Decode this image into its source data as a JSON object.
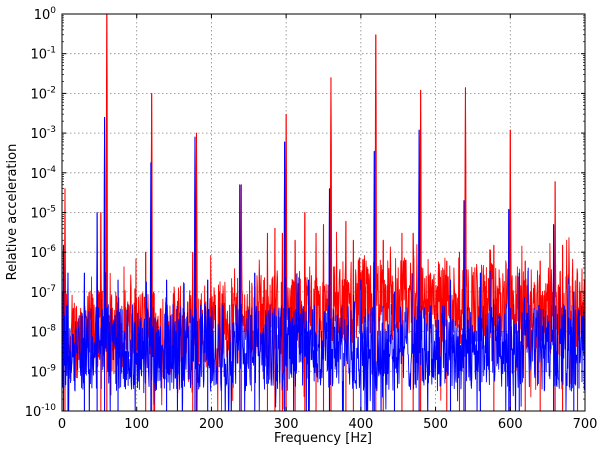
{
  "chart_data": {
    "type": "line",
    "title": "",
    "xlabel": "Frequency  [Hz]",
    "ylabel": "Relative acceleration",
    "x_scale": "linear",
    "y_scale": "log",
    "xlim": [
      0,
      700
    ],
    "ylim": [
      1e-10,
      1
    ],
    "grid": true,
    "x_ticks": [
      {
        "value": 0,
        "label": "0"
      },
      {
        "value": 100,
        "label": "100"
      },
      {
        "value": 200,
        "label": "200"
      },
      {
        "value": 300,
        "label": "300"
      },
      {
        "value": 400,
        "label": "400"
      },
      {
        "value": 500,
        "label": "500"
      },
      {
        "value": 600,
        "label": "600"
      },
      {
        "value": 700,
        "label": "700"
      }
    ],
    "y_ticks": [
      {
        "value": 1e-10,
        "mantissa": "10",
        "exponent": "-10"
      },
      {
        "value": 1e-09,
        "mantissa": "10",
        "exponent": "-9"
      },
      {
        "value": 1e-08,
        "mantissa": "10",
        "exponent": "-8"
      },
      {
        "value": 1e-07,
        "mantissa": "10",
        "exponent": "-7"
      },
      {
        "value": 1e-06,
        "mantissa": "10",
        "exponent": "-6"
      },
      {
        "value": 1e-05,
        "mantissa": "10",
        "exponent": "-5"
      },
      {
        "value": 0.0001,
        "mantissa": "10",
        "exponent": "-4"
      },
      {
        "value": 0.001,
        "mantissa": "10",
        "exponent": "-3"
      },
      {
        "value": 0.01,
        "mantissa": "10",
        "exponent": "-2"
      },
      {
        "value": 0.1,
        "mantissa": "10",
        "exponent": "-1"
      },
      {
        "value": 1,
        "mantissa": "10",
        "exponent": "0"
      }
    ],
    "series": [
      {
        "color": "#ff0000",
        "peaks": [
          [
            4,
            4e-05
          ],
          [
            60,
            1.0
          ],
          [
            120,
            0.01
          ],
          [
            180,
            0.001
          ],
          [
            240,
            5e-05
          ],
          [
            300,
            0.003
          ],
          [
            360,
            0.025
          ],
          [
            420,
            0.3
          ],
          [
            480,
            0.012
          ],
          [
            540,
            0.014
          ],
          [
            600,
            0.0012
          ],
          [
            660,
            6e-05
          ],
          [
            52,
            1e-05
          ],
          [
            112,
            1e-06
          ],
          [
            175,
            1e-06
          ],
          [
            275,
            3e-06
          ],
          [
            285,
            4e-06
          ],
          [
            295,
            3e-06
          ],
          [
            312,
            2e-06
          ],
          [
            325,
            1e-05
          ],
          [
            340,
            3e-06
          ],
          [
            350,
            5e-06
          ],
          [
            380,
            6e-06
          ],
          [
            390,
            2e-06
          ],
          [
            430,
            2e-06
          ],
          [
            455,
            3e-06
          ],
          [
            470,
            3e-06
          ],
          [
            515,
            6e-07
          ],
          [
            532,
            1e-06
          ],
          [
            578,
            1.5e-06
          ],
          [
            620,
            6e-07
          ],
          [
            640,
            6e-07
          ],
          [
            670,
            1.5e-06
          ],
          [
            690,
            3e-07
          ]
        ],
        "noise_floor": [
          [
            0,
            8e-09
          ],
          [
            100,
            1e-08
          ],
          [
            200,
            1.5e-08
          ],
          [
            300,
            2.5e-08
          ],
          [
            400,
            6e-08
          ],
          [
            500,
            6e-08
          ],
          [
            600,
            4e-08
          ],
          [
            700,
            3e-08
          ]
        ]
      },
      {
        "color": "#0000ff",
        "peaks": [
          [
            2,
            1.5e-06
          ],
          [
            8,
            3e-07
          ],
          [
            57,
            0.0025
          ],
          [
            47,
            1e-05
          ],
          [
            119,
            0.00018
          ],
          [
            178,
            0.0008
          ],
          [
            238,
            5e-05
          ],
          [
            298,
            0.0006
          ],
          [
            358,
            4e-05
          ],
          [
            418,
            0.00035
          ],
          [
            478,
            0.0012
          ],
          [
            538,
            2e-05
          ],
          [
            598,
            1.2e-05
          ],
          [
            658,
            5e-06
          ],
          [
            30,
            3e-07
          ],
          [
            75,
            2e-07
          ],
          [
            140,
            2e-07
          ],
          [
            195,
            2e-07
          ],
          [
            258,
            3e-07
          ],
          [
            330,
            2e-07
          ],
          [
            400,
            2e-07
          ],
          [
            445,
            1e-07
          ],
          [
            520,
            2e-07
          ],
          [
            560,
            3e-07
          ],
          [
            612,
            3e-07
          ],
          [
            685,
            1e-07
          ]
        ],
        "noise_floor": [
          [
            0,
            4e-09
          ],
          [
            100,
            4e-09
          ],
          [
            200,
            4e-09
          ],
          [
            300,
            4e-09
          ],
          [
            400,
            4e-09
          ],
          [
            500,
            4e-09
          ],
          [
            600,
            4e-09
          ],
          [
            700,
            4e-09
          ]
        ]
      }
    ]
  }
}
